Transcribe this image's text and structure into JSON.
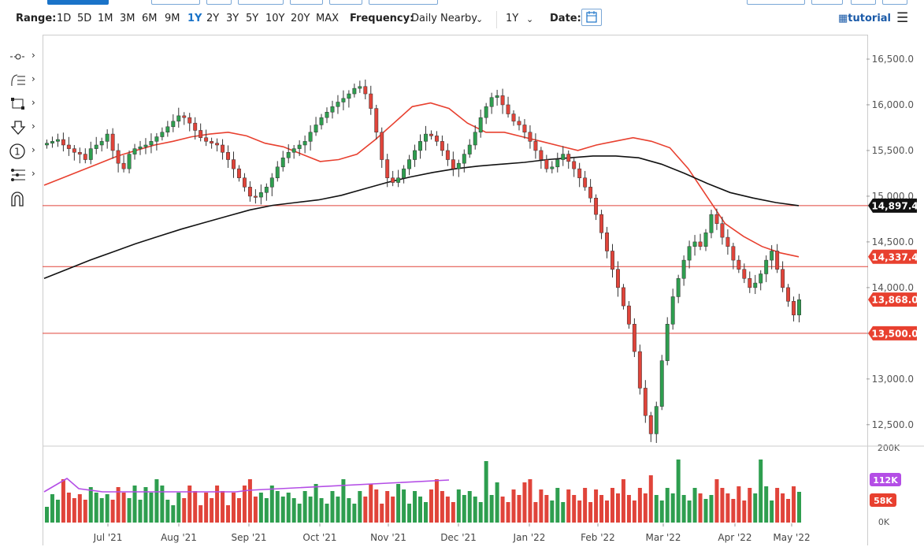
{
  "toolbar": {
    "range_label": "Range:",
    "ranges": [
      "1D",
      "5D",
      "1M",
      "3M",
      "6M",
      "9M",
      "1Y",
      "2Y",
      "3Y",
      "5Y",
      "10Y",
      "20Y",
      "MAX"
    ],
    "active_range": "1Y",
    "frequency_label": "Frequency:",
    "frequency_value": "Daily Nearby",
    "period_value": "1Y",
    "date_label": "Date:",
    "tutorial_label": "tutorial"
  },
  "side_tools": [
    "crosshair-tool-icon",
    "fibonacci-tool-icon",
    "rectangle-tool-icon",
    "arrow-down-tool-icon",
    "number-marker-tool-icon",
    "pitchfork-tool-icon",
    "magnet-tool-icon"
  ],
  "colors": {
    "up": "#2e9e4f",
    "down": "#e0443a",
    "ma_fast": "#e8402f",
    "ma_slow": "#111111",
    "line": "#e0443a",
    "volume_ma": "#b44ee6",
    "accent": "#1a73c8"
  },
  "chart_data": {
    "type": "candlestick",
    "y_axis": {
      "ticks": [
        12500,
        13000,
        13500,
        14000,
        14500,
        15000,
        15500,
        16000,
        16500
      ],
      "tick_labels": [
        "12,500.0",
        "13,000.0",
        "13,500.0",
        "14,000.0",
        "14,500.0",
        "15,000.0",
        "15,500.0",
        "16,000.0",
        "16,500.0"
      ],
      "range": [
        12300,
        16750
      ]
    },
    "x_axis": {
      "labels": [
        "Jul '21",
        "Aug '21",
        "Sep '21",
        "Oct '21",
        "Nov '21",
        "Dec '21",
        "Jan '22",
        "Feb '22",
        "Mar '22",
        "Apr '22",
        "May '22"
      ]
    },
    "horizontal_lines": [
      14897.4,
      14230,
      13500
    ],
    "price_tags": [
      {
        "label": "14,897.4",
        "value": 14897.4,
        "color": "#111111"
      },
      {
        "label": "14,337.4",
        "value": 14337.4,
        "color": "#e8402f"
      },
      {
        "label": "13,868.0",
        "value": 13868.0,
        "color": "#e8402f"
      },
      {
        "label": "13,500.0",
        "value": 13500.0,
        "color": "#e8402f"
      }
    ],
    "moving_average_fast": [
      15120,
      15200,
      15280,
      15360,
      15440,
      15500,
      15560,
      15600,
      15650,
      15680,
      15700,
      15660,
      15580,
      15540,
      15460,
      15380,
      15400,
      15460,
      15620,
      15800,
      15980,
      16020,
      15960,
      15800,
      15700,
      15700,
      15650,
      15600,
      15550,
      15500,
      15560,
      15600,
      15640,
      15600,
      15530,
      15300,
      15000,
      14700,
      14560,
      14450,
      14380,
      14337
    ],
    "moving_average_slow": [
      14100,
      14200,
      14300,
      14390,
      14480,
      14560,
      14640,
      14710,
      14780,
      14850,
      14900,
      14930,
      14960,
      15010,
      15080,
      15150,
      15210,
      15260,
      15300,
      15330,
      15350,
      15370,
      15400,
      15420,
      15440,
      15440,
      15420,
      15350,
      15250,
      15140,
      15040,
      14980,
      14930,
      14897
    ],
    "candles_close": [
      15580,
      15600,
      15620,
      15560,
      15520,
      15480,
      15460,
      15400,
      15520,
      15560,
      15600,
      15680,
      15500,
      15360,
      15300,
      15460,
      15520,
      15540,
      15560,
      15600,
      15650,
      15700,
      15760,
      15820,
      15880,
      15860,
      15800,
      15720,
      15640,
      15600,
      15580,
      15560,
      15480,
      15400,
      15300,
      15200,
      15100,
      15000,
      14990,
      15040,
      15100,
      15200,
      15320,
      15420,
      15480,
      15520,
      15560,
      15600,
      15700,
      15780,
      15860,
      15920,
      15980,
      16030,
      16070,
      16120,
      16180,
      16200,
      16120,
      15960,
      15700,
      15400,
      15200,
      15150,
      15200,
      15300,
      15400,
      15500,
      15600,
      15680,
      15660,
      15600,
      15500,
      15400,
      15300,
      15360,
      15460,
      15560,
      15700,
      15860,
      15980,
      16080,
      16100,
      16000,
      15900,
      15820,
      15780,
      15700,
      15600,
      15500,
      15400,
      15300,
      15320,
      15400,
      15460,
      15380,
      15300,
      15200,
      15100,
      14980,
      14800,
      14600,
      14400,
      14200,
      14000,
      13800,
      13600,
      13300,
      12900,
      12600,
      12400,
      12700,
      13200,
      13600,
      13900,
      14100,
      14300,
      14450,
      14500,
      14450,
      14600,
      14800,
      14700,
      14550,
      14450,
      14300,
      14200,
      14100,
      14000,
      14050,
      14150,
      14300,
      14400,
      14200,
      14000,
      13850,
      13700,
      13868
    ],
    "volume": {
      "ticks": [
        "200K",
        "112K",
        "58K",
        "0K"
      ],
      "ma_label": "112K",
      "last_label": "58K"
    }
  }
}
